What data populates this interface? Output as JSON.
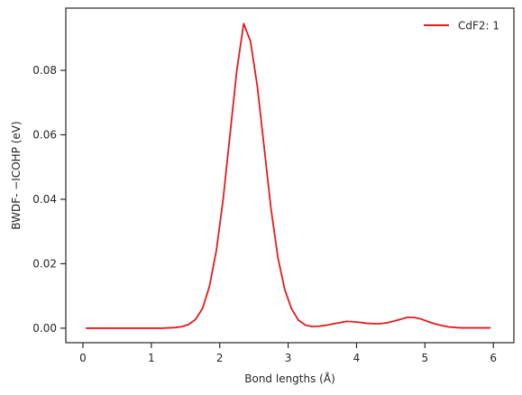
{
  "chart_data": {
    "type": "line",
    "xlabel": "Bond lengths (Å)",
    "ylabel": "BWDF- −ICOHP (eV)",
    "xlim": [
      -0.25,
      6.3
    ],
    "ylim": [
      -0.0045,
      0.0993
    ],
    "xticks": [
      0,
      1,
      2,
      3,
      4,
      5,
      6
    ],
    "xtick_labels": [
      "0",
      "1",
      "2",
      "3",
      "4",
      "5",
      "6"
    ],
    "yticks": [
      0.0,
      0.02,
      0.04,
      0.06,
      0.08
    ],
    "ytick_labels": [
      "0.00",
      "0.02",
      "0.04",
      "0.06",
      "0.08"
    ],
    "grid": false,
    "legend_position": "top-right",
    "series": [
      {
        "name": "CdF2: 1",
        "color": "#e41a1c",
        "x": [
          0.05,
          0.15,
          0.25,
          0.35,
          0.45,
          0.55,
          0.65,
          0.75,
          0.85,
          0.95,
          1.05,
          1.15,
          1.25,
          1.35,
          1.45,
          1.55,
          1.65,
          1.75,
          1.85,
          1.95,
          2.05,
          2.15,
          2.25,
          2.35,
          2.45,
          2.55,
          2.65,
          2.75,
          2.85,
          2.95,
          3.05,
          3.15,
          3.25,
          3.35,
          3.45,
          3.55,
          3.65,
          3.75,
          3.85,
          3.95,
          4.05,
          4.15,
          4.25,
          4.35,
          4.45,
          4.55,
          4.65,
          4.75,
          4.85,
          4.95,
          5.05,
          5.15,
          5.25,
          5.35,
          5.45,
          5.55,
          5.65,
          5.75,
          5.85,
          5.95
        ],
        "y": [
          0,
          0,
          0,
          0,
          0,
          0,
          0,
          0,
          0,
          0,
          0,
          0,
          0.0001,
          0.0002,
          0.0005,
          0.0012,
          0.0028,
          0.0062,
          0.013,
          0.024,
          0.04,
          0.06,
          0.08,
          0.0945,
          0.089,
          0.075,
          0.056,
          0.037,
          0.022,
          0.012,
          0.006,
          0.0025,
          0.001,
          0.0005,
          0.0006,
          0.0009,
          0.0013,
          0.0017,
          0.0021,
          0.002,
          0.0018,
          0.0015,
          0.0014,
          0.0014,
          0.0017,
          0.0022,
          0.0028,
          0.0034,
          0.0033,
          0.0028,
          0.002,
          0.0013,
          0.0008,
          0.0004,
          0.0002,
          0.0001,
          0.0001,
          0.0001,
          0.0001,
          0.0001
        ]
      }
    ]
  }
}
